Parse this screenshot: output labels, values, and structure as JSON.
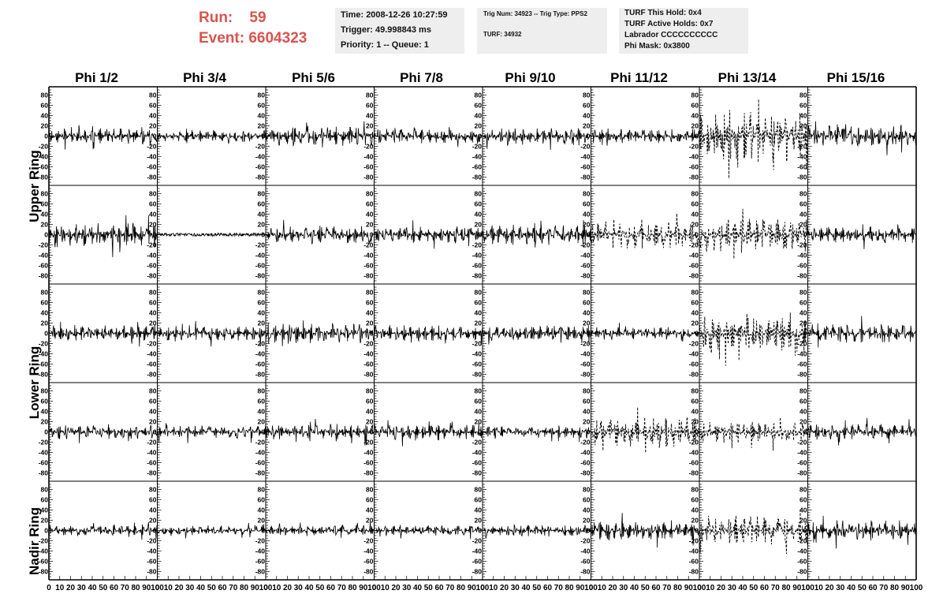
{
  "header": {
    "run_label": "Run:",
    "run_value": "59",
    "event_label": "Event:",
    "event_value": "6604323"
  },
  "info_box_1": {
    "time": "Time: 2008-12-26 10:27:59",
    "trigger": "Trigger: 49.998843 ms",
    "priority": "Priority: 1 -- Queue: 1"
  },
  "info_box_2": {
    "trig": "Trig Num: 34923 -- Trig Type: PPS2",
    "turf": "TURF: 34932"
  },
  "info_box_3": {
    "this_hold": "TURF This Hold: 0x4",
    "active_holds": "TURF Active Holds: 0x7",
    "labrador": "Labrador CCCCCCCCCC",
    "phi_mask": "Phi Mask: 0x3800"
  },
  "column_headers": [
    "Phi 1/2",
    "Phi 3/4",
    "Phi 5/6",
    "Phi 7/8",
    "Phi 9/10",
    "Phi 11/12",
    "Phi 13/14",
    "Phi 15/16"
  ],
  "ring_labels": [
    "Upper Ring",
    "Lower Ring",
    "Nadir Ring"
  ],
  "chart_data": {
    "type": "line",
    "grid": {
      "rows": 5,
      "cols": 8
    },
    "ylim": [
      -90,
      90
    ],
    "xlim": [
      0,
      100
    ],
    "yticks": [
      "80",
      "60",
      "40",
      "20",
      "0",
      "-20",
      "-40",
      "-60",
      "-80"
    ],
    "xticks": [
      "0",
      "10",
      "20",
      "30",
      "40",
      "50",
      "60",
      "70",
      "80",
      "90",
      "100"
    ],
    "panels": [
      {
        "row": 0,
        "col": 0,
        "amp": 16,
        "dashed": false
      },
      {
        "row": 0,
        "col": 1,
        "amp": 11,
        "dashed": false
      },
      {
        "row": 0,
        "col": 2,
        "amp": 20,
        "dashed": false
      },
      {
        "row": 0,
        "col": 3,
        "amp": 15,
        "dashed": false
      },
      {
        "row": 0,
        "col": 4,
        "amp": 17,
        "dashed": false
      },
      {
        "row": 0,
        "col": 5,
        "amp": 16,
        "dashed": false
      },
      {
        "row": 0,
        "col": 6,
        "amp": 52,
        "dashed": true
      },
      {
        "row": 0,
        "col": 7,
        "amp": 23,
        "dashed": false
      },
      {
        "row": 1,
        "col": 0,
        "amp": 25,
        "dashed": false
      },
      {
        "row": 1,
        "col": 1,
        "amp": 3,
        "dashed": false
      },
      {
        "row": 1,
        "col": 2,
        "amp": 19,
        "dashed": false
      },
      {
        "row": 1,
        "col": 3,
        "amp": 17,
        "dashed": false
      },
      {
        "row": 1,
        "col": 4,
        "amp": 20,
        "dashed": false
      },
      {
        "row": 1,
        "col": 5,
        "amp": 28,
        "dashed": true
      },
      {
        "row": 1,
        "col": 6,
        "amp": 34,
        "dashed": true
      },
      {
        "row": 1,
        "col": 7,
        "amp": 17,
        "dashed": false
      },
      {
        "row": 2,
        "col": 0,
        "amp": 17,
        "dashed": false
      },
      {
        "row": 2,
        "col": 1,
        "amp": 16,
        "dashed": false
      },
      {
        "row": 2,
        "col": 2,
        "amp": 21,
        "dashed": false
      },
      {
        "row": 2,
        "col": 3,
        "amp": 16,
        "dashed": false
      },
      {
        "row": 2,
        "col": 4,
        "amp": 17,
        "dashed": false
      },
      {
        "row": 2,
        "col": 5,
        "amp": 13,
        "dashed": false
      },
      {
        "row": 2,
        "col": 6,
        "amp": 40,
        "dashed": true
      },
      {
        "row": 2,
        "col": 7,
        "amp": 19,
        "dashed": false
      },
      {
        "row": 3,
        "col": 0,
        "amp": 15,
        "dashed": false
      },
      {
        "row": 3,
        "col": 1,
        "amp": 13,
        "dashed": false
      },
      {
        "row": 3,
        "col": 2,
        "amp": 16,
        "dashed": false
      },
      {
        "row": 3,
        "col": 3,
        "amp": 16,
        "dashed": false
      },
      {
        "row": 3,
        "col": 4,
        "amp": 13,
        "dashed": false
      },
      {
        "row": 3,
        "col": 5,
        "amp": 32,
        "dashed": true
      },
      {
        "row": 3,
        "col": 6,
        "amp": 22,
        "dashed": true
      },
      {
        "row": 3,
        "col": 7,
        "amp": 16,
        "dashed": false
      },
      {
        "row": 4,
        "col": 0,
        "amp": 11,
        "dashed": false
      },
      {
        "row": 4,
        "col": 1,
        "amp": 9,
        "dashed": false
      },
      {
        "row": 4,
        "col": 2,
        "amp": 11,
        "dashed": false
      },
      {
        "row": 4,
        "col": 3,
        "amp": 11,
        "dashed": false
      },
      {
        "row": 4,
        "col": 4,
        "amp": 12,
        "dashed": false
      },
      {
        "row": 4,
        "col": 5,
        "amp": 20,
        "dashed": false
      },
      {
        "row": 4,
        "col": 6,
        "amp": 30,
        "dashed": true
      },
      {
        "row": 4,
        "col": 7,
        "amp": 22,
        "dashed": false
      }
    ]
  }
}
